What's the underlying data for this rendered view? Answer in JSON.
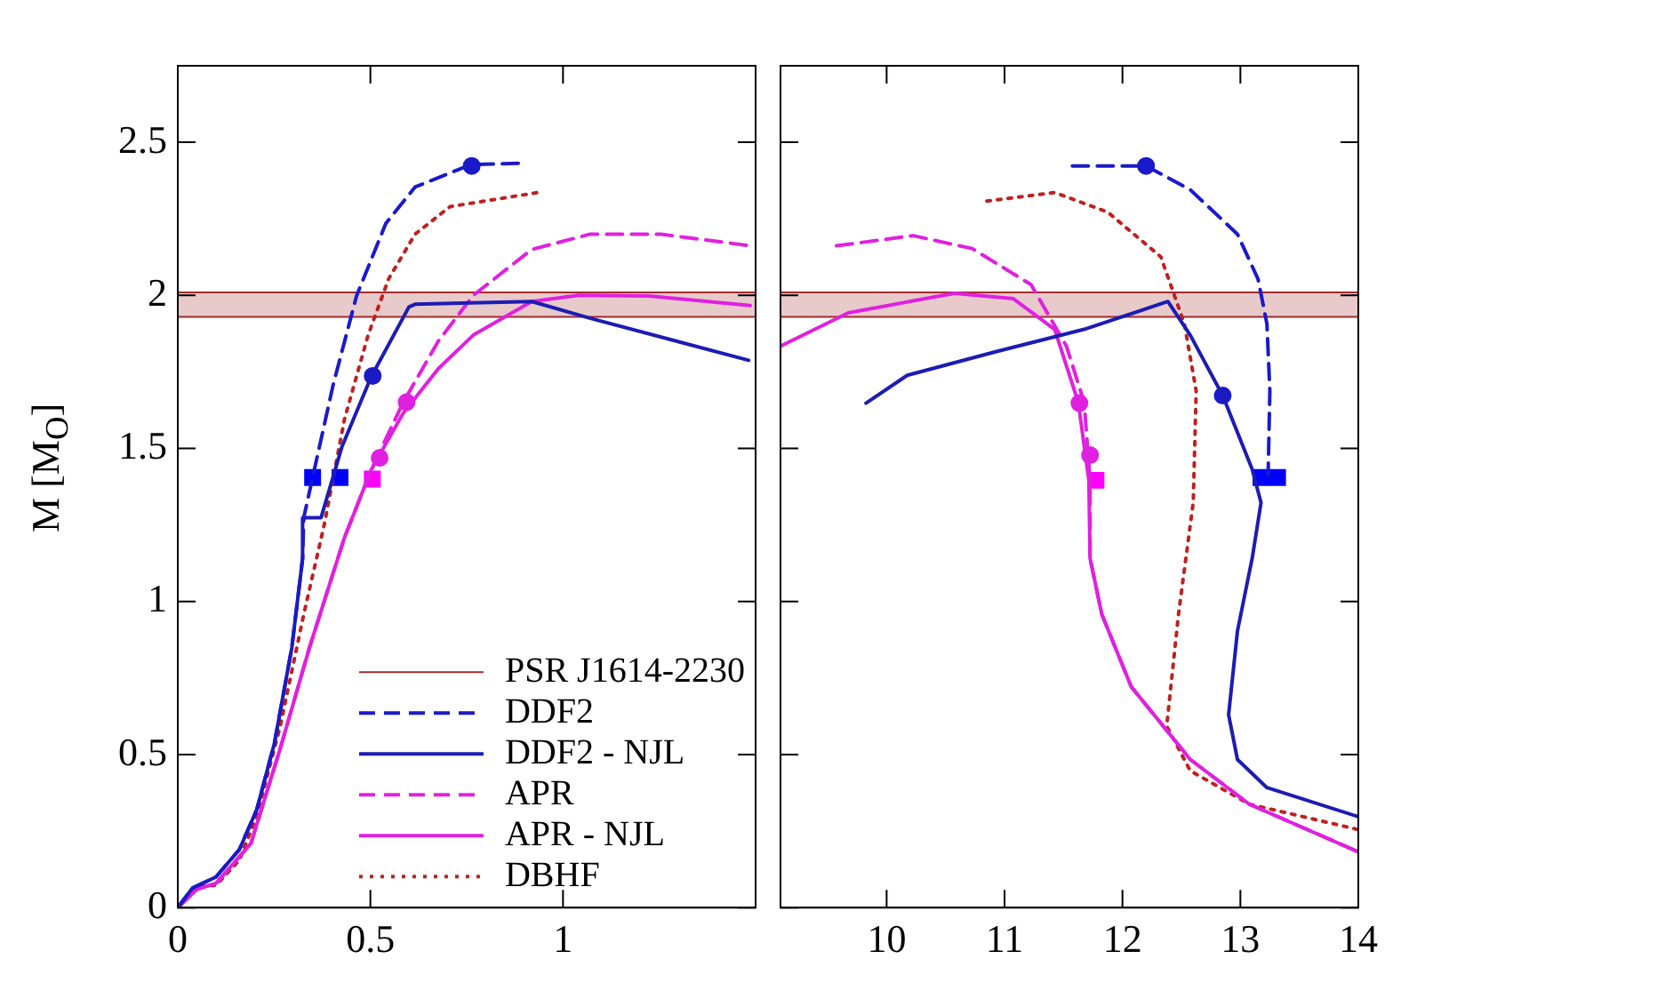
{
  "chart_data": [
    {
      "type": "line",
      "ylabel": "M [M$_{O}$]",
      "xlim": [
        0,
        1.5
      ],
      "xticks": [
        0,
        0.5,
        1
      ],
      "ylim": [
        0,
        2.75
      ],
      "yticks": [
        0,
        0.5,
        1,
        1.5,
        2,
        2.5
      ],
      "grid": false,
      "legend": "bottom right",
      "marker": "none",
      "bands": [
        {
          "axis": "y",
          "from": 1.93,
          "to": 2.01,
          "color": "#a52a2a"
        }
      ],
      "ref_lines": [
        {
          "axis": "y",
          "value": 2.01,
          "label": "PSR J1614-2230",
          "color": "#a52a2a"
        },
        {
          "axis": "y",
          "value": 1.93,
          "color": "#a52a2a"
        }
      ],
      "series": [
        {
          "name": "DDF2",
          "type": "line",
          "color": "#1a1acc",
          "line_style": "dashed",
          "x": [
            0,
            0.038,
            0.099,
            0.16,
            0.205,
            0.251,
            0.296,
            0.324,
            0.327,
            0.35,
            0.403,
            0.464,
            0.54,
            0.616,
            0.76,
            0.904
          ],
          "values": [
            0,
            0.064,
            0.1,
            0.19,
            0.32,
            0.538,
            0.849,
            1.14,
            1.274,
            1.405,
            1.706,
            1.998,
            2.235,
            2.354,
            2.427,
            2.432
          ]
        },
        {
          "name": "DDF2 - NJL",
          "type": "line",
          "color": "#1c1cb4",
          "line_style": "solid",
          "x": [
            0,
            0.038,
            0.099,
            0.16,
            0.205,
            0.251,
            0.296,
            0.324,
            0.324,
            0.372,
            0.426,
            0.502,
            0.6,
            0.616,
            0.919,
            1.071,
            1.482
          ],
          "values": [
            0,
            0.064,
            0.1,
            0.19,
            0.32,
            0.538,
            0.849,
            1.14,
            1.274,
            1.274,
            1.505,
            1.734,
            1.962,
            1.971,
            1.98,
            1.925,
            1.788
          ]
        },
        {
          "name": "APR",
          "type": "line",
          "color": "#e020e0",
          "line_style": "dashed",
          "x": [
            0,
            0.05,
            0.1,
            0.19,
            0.266,
            0.342,
            0.433,
            0.502,
            0.585,
            0.676,
            0.767,
            0.919,
            1.071,
            1.254,
            1.486
          ],
          "values": [
            0,
            0.06,
            0.08,
            0.21,
            0.52,
            0.85,
            1.21,
            1.43,
            1.65,
            1.85,
            2.0,
            2.15,
            2.2,
            2.2,
            2.162
          ]
        },
        {
          "name": "APR - NJL",
          "type": "line",
          "color": "#e020e0",
          "line_style": "solid",
          "x": [
            0,
            0.05,
            0.1,
            0.19,
            0.266,
            0.342,
            0.433,
            0.502,
            0.585,
            0.676,
            0.767,
            0.919,
            1.041,
            1.223,
            1.486
          ],
          "values": [
            0,
            0.06,
            0.08,
            0.21,
            0.52,
            0.85,
            1.21,
            1.43,
            1.615,
            1.76,
            1.87,
            1.98,
            2.0,
            1.998,
            1.967
          ]
        },
        {
          "name": "DBHF",
          "type": "line",
          "color": "#c02020",
          "line_style": "dotted",
          "x": [
            0,
            0.05,
            0.099,
            0.16,
            0.205,
            0.266,
            0.327,
            0.38,
            0.433,
            0.494,
            0.547,
            0.616,
            0.707,
            0.935
          ],
          "values": [
            0,
            0.07,
            0.073,
            0.155,
            0.3,
            0.593,
            0.958,
            1.25,
            1.597,
            1.87,
            2.053,
            2.2,
            2.29,
            2.336
          ]
        },
        {
          "type": "scatter",
          "marker": "square",
          "color": "#0000ff",
          "x": [
            0.35,
            0.421
          ],
          "values": [
            1.405,
            1.405
          ]
        },
        {
          "type": "scatter",
          "marker": "square",
          "color": "#ff00ff",
          "x": [
            0.505
          ],
          "values": [
            1.4
          ]
        },
        {
          "type": "scatter",
          "marker": "circle",
          "color": "#1a1acc",
          "x": [
            0.763,
            0.506
          ],
          "values": [
            2.423,
            1.737
          ]
        },
        {
          "type": "scatter",
          "marker": "circle",
          "color": "#e020e0",
          "x": [
            0.524,
            0.594
          ],
          "values": [
            1.469,
            1.651
          ]
        }
      ]
    },
    {
      "type": "line",
      "xlim": [
        9.1,
        14
      ],
      "xticks": [
        10,
        11,
        12,
        13,
        14
      ],
      "ylim": [
        0,
        2.75
      ],
      "yticks": [
        0,
        0.5,
        1,
        1.5,
        2,
        2.5
      ],
      "grid": false,
      "tick_labels": "x",
      "marker": "none",
      "bands": [
        {
          "axis": "y",
          "from": 1.93,
          "to": 2.01,
          "color": "#a52a2a"
        }
      ],
      "ref_lines": [
        {
          "axis": "y",
          "value": 2.01,
          "color": "#a52a2a"
        },
        {
          "axis": "y",
          "value": 1.93,
          "color": "#a52a2a"
        }
      ],
      "series": [
        {
          "type": "line",
          "color": "#1a1acc",
          "line_style": "dashed",
          "x": [
            11.575,
            12.2,
            12.575,
            12.975,
            13.15,
            13.225,
            13.25,
            13.235
          ],
          "values": [
            2.423,
            2.423,
            2.345,
            2.2,
            2.053,
            1.907,
            1.688,
            1.414
          ]
        },
        {
          "type": "line",
          "color": "#1c1cb4",
          "line_style": "solid",
          "x": [
            9.825,
            10.175,
            10.925,
            11.675,
            12.385,
            12.575,
            12.85,
            13.1,
            13.175,
            13.1,
            12.975,
            12.9,
            12.975,
            13.225,
            14
          ],
          "values": [
            1.648,
            1.739,
            1.816,
            1.889,
            1.98,
            1.87,
            1.673,
            1.432,
            1.323,
            1.141,
            0.903,
            0.63,
            0.484,
            0.392,
            0.297
          ]
        },
        {
          "type": "line",
          "color": "#e020e0",
          "line_style": "dashed",
          "x": [
            9.575,
            10.225,
            10.725,
            11.225,
            11.525,
            11.675,
            11.725,
            11.725,
            11.825,
            12.075,
            12.575,
            13.075,
            14
          ],
          "values": [
            2.162,
            2.195,
            2.153,
            2.035,
            1.834,
            1.651,
            1.396,
            1.141,
            0.958,
            0.721,
            0.484,
            0.338,
            0.182
          ]
        },
        {
          "type": "line",
          "color": "#e020e0",
          "line_style": "solid",
          "x": [
            9.1,
            9.675,
            10.575,
            11.075,
            11.425,
            11.625,
            11.715,
            11.725,
            11.825,
            12.075,
            12.575,
            13.075,
            14
          ],
          "values": [
            1.834,
            1.943,
            2.007,
            1.989,
            1.889,
            1.651,
            1.396,
            1.141,
            0.958,
            0.721,
            0.484,
            0.338,
            0.182
          ]
        },
        {
          "type": "line",
          "color": "#c02020",
          "line_style": "dotted",
          "x": [
            10.85,
            11.425,
            11.875,
            12.325,
            12.525,
            12.625,
            12.6,
            12.475,
            12.375,
            12.575,
            13.075,
            14
          ],
          "values": [
            2.308,
            2.336,
            2.272,
            2.126,
            1.907,
            1.688,
            1.323,
            0.958,
            0.593,
            0.447,
            0.338,
            0.255
          ]
        },
        {
          "type": "scatter",
          "marker": "square",
          "color": "#0000ff",
          "x": [
            13.175,
            13.315
          ],
          "values": [
            1.405,
            1.405
          ]
        },
        {
          "type": "scatter",
          "marker": "square",
          "color": "#ff00ff",
          "x": [
            11.775
          ],
          "values": [
            1.396
          ]
        },
        {
          "type": "scatter",
          "marker": "circle",
          "color": "#1a1acc",
          "x": [
            12.2,
            12.85
          ],
          "values": [
            2.423,
            1.673
          ]
        },
        {
          "type": "scatter",
          "marker": "circle",
          "color": "#e020e0",
          "x": [
            11.635,
            11.725
          ],
          "values": [
            1.648,
            1.478
          ]
        }
      ]
    }
  ]
}
